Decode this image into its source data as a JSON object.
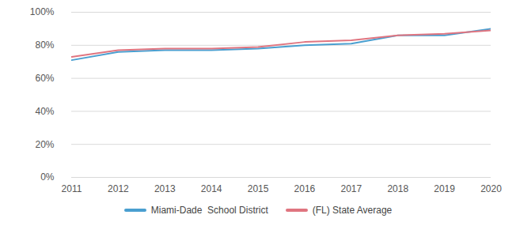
{
  "chart_data": {
    "type": "line",
    "x": [
      2011,
      2012,
      2013,
      2014,
      2015,
      2016,
      2017,
      2018,
      2019,
      2020
    ],
    "series": [
      {
        "name": "Miami-Dade  School District",
        "color": "#4a9fd0",
        "values": [
          71,
          76,
          77,
          77,
          78,
          80,
          81,
          86,
          86,
          90
        ]
      },
      {
        "name": "(FL) State Average",
        "color": "#e07580",
        "values": [
          73,
          77,
          78,
          78,
          79,
          82,
          83,
          86,
          87,
          89
        ]
      }
    ],
    "xlim": [
      2011,
      2020
    ],
    "xticks": [
      2011,
      2012,
      2013,
      2014,
      2015,
      2016,
      2017,
      2018,
      2019,
      2020
    ],
    "ylim": [
      0,
      100
    ],
    "yticks": [
      {
        "value": 0,
        "label": "0%"
      },
      {
        "value": 20,
        "label": "20%"
      },
      {
        "value": 40,
        "label": "40%"
      },
      {
        "value": 60,
        "label": "60%"
      },
      {
        "value": 80,
        "label": "80%"
      },
      {
        "value": 100,
        "label": "100%"
      }
    ],
    "grid": true,
    "legend": "bottom"
  }
}
